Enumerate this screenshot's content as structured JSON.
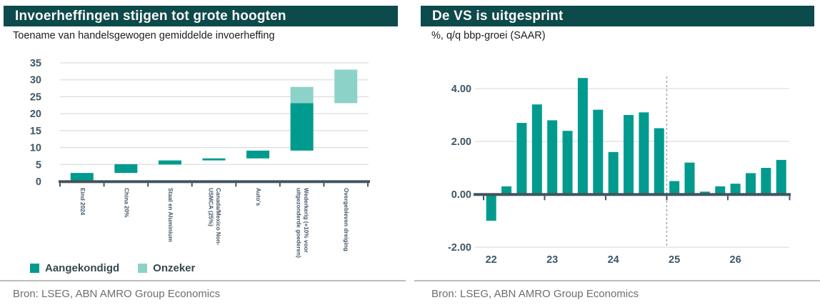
{
  "colors": {
    "header_bg": "#0c4a4c",
    "header_text": "#fdf8f1",
    "announced_teal": "#009b8e",
    "uncertain_teal": "#8dd2c9",
    "axis": "#44535d",
    "tick_label": "#3e5666",
    "grid": "#dedede",
    "dashed_line": "#9ea3a7",
    "legend_text": "#37474f",
    "source_text": "#6e6e6e",
    "divider": "#bdbdbd"
  },
  "left_panel": {
    "title": "Invoerheffingen stijgen tot grote hoogten",
    "subtitle": "Toename van handelsgewogen gemiddelde invoerheffing",
    "source": "Bron: LSEG, ABN AMRO Group Economics"
  },
  "right_panel": {
    "title": "De VS is uitgesprint",
    "subtitle": "%, q/q bbp-groei (SAAR)",
    "source": "Bron: LSEG, ABN AMRO Group Economics"
  },
  "chart_data": [
    {
      "type": "bar",
      "variant": "floating_waterfall",
      "title": "Invoerheffingen stijgen tot grote hoogten",
      "subtitle": "Toename van handelsgewogen gemiddelde invoerheffing",
      "categories": [
        "Eind 2024",
        "China 20%",
        "Staal en Aluminium",
        "Canada/Mexico Non-USMCA (25%)",
        "Auto's",
        "Wederkerig (+10% voor uitgezonderde goederen)",
        "Overgebleven dreiging"
      ],
      "category_label_lines": [
        [
          "Eind 2024"
        ],
        [
          "China 20%"
        ],
        [
          "Staal en Aluminium"
        ],
        [
          "Canada/Mexico Non-",
          "USMCA (25%)"
        ],
        [
          "Auto's"
        ],
        [
          "Wederkerig (+10% voor",
          "uitgezonderde goederen)"
        ],
        [
          "Overgebleven dreiging"
        ]
      ],
      "segments": [
        [
          {
            "series": "Aangekondigd",
            "from": 0,
            "to": 2.5
          }
        ],
        [
          {
            "series": "Aangekondigd",
            "from": 2.5,
            "to": 5.1
          }
        ],
        [
          {
            "series": "Aangekondigd",
            "from": 5.0,
            "to": 6.2
          }
        ],
        [
          {
            "series": "Aangekondigd",
            "from": 6.2,
            "to": 6.8
          }
        ],
        [
          {
            "series": "Aangekondigd",
            "from": 6.8,
            "to": 9.1
          }
        ],
        [
          {
            "series": "Aangekondigd",
            "from": 9.1,
            "to": 23.1
          },
          {
            "series": "Onzeker",
            "from": 23.1,
            "to": 27.9
          }
        ],
        [
          {
            "series": "Onzeker",
            "from": 23.1,
            "to": 33.0
          }
        ]
      ],
      "legend": [
        {
          "name": "Aangekondigd",
          "color": "#009b8e"
        },
        {
          "name": "Onzeker",
          "color": "#8dd2c9"
        }
      ],
      "legend_position": "bottom",
      "ylim": [
        0,
        35
      ],
      "yticks": [
        0,
        5,
        10,
        15,
        20,
        25,
        30,
        35
      ],
      "grid": true
    },
    {
      "type": "bar",
      "title": "De VS is uitgesprint",
      "subtitle": "%, q/q bbp-groei (SAAR)",
      "x": [
        "2022Q1",
        "2022Q2",
        "2022Q3",
        "2022Q4",
        "2023Q1",
        "2023Q2",
        "2023Q3",
        "2023Q4",
        "2024Q1",
        "2024Q2",
        "2024Q3",
        "2024Q4",
        "2025Q1",
        "2025Q2",
        "2025Q3",
        "2025Q4",
        "2026Q1",
        "2026Q2",
        "2026Q3",
        "2026Q4"
      ],
      "values": [
        -1.0,
        0.3,
        2.7,
        3.4,
        2.8,
        2.4,
        4.4,
        3.2,
        1.6,
        3.0,
        3.1,
        2.5,
        0.5,
        1.2,
        0.1,
        0.3,
        0.4,
        0.8,
        1.0,
        1.3
      ],
      "forecast_start_index": 12,
      "forecast_marker": "vertical dashed line before 2025Q1",
      "bar_color": "#009b8e",
      "ylim": [
        -2.6,
        4.8
      ],
      "yticks": [
        -2,
        0,
        2,
        4
      ],
      "ytick_labels": [
        "-2.00",
        "0.00",
        "2.00",
        "4.00"
      ],
      "xtick_labels": [
        "22",
        "23",
        "24",
        "25",
        "26"
      ],
      "grid": true,
      "legend_position": "none"
    }
  ]
}
